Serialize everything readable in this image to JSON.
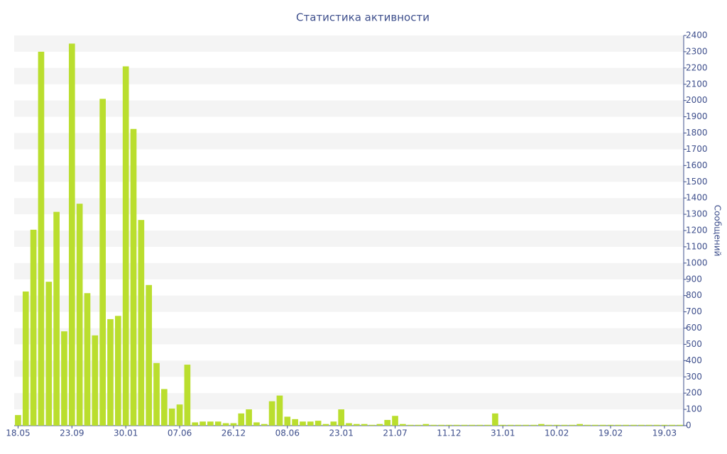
{
  "chart_data": {
    "type": "bar",
    "title": "Статистика активности",
    "y_label": "Сообщений",
    "categories": [
      "18.05",
      null,
      null,
      null,
      null,
      null,
      null,
      "23.09",
      null,
      null,
      null,
      null,
      null,
      null,
      "30.01",
      null,
      null,
      null,
      null,
      null,
      null,
      "07.06",
      null,
      null,
      null,
      null,
      null,
      null,
      "26.12",
      null,
      null,
      null,
      null,
      null,
      null,
      "08.06",
      null,
      null,
      null,
      null,
      null,
      null,
      "23.01",
      null,
      null,
      null,
      null,
      null,
      null,
      "21.07",
      null,
      null,
      null,
      null,
      null,
      null,
      "11.12",
      null,
      null,
      null,
      null,
      null,
      null,
      "31.01",
      null,
      null,
      null,
      null,
      null,
      null,
      "10.02",
      null,
      null,
      null,
      null,
      null,
      null,
      "19.02",
      null,
      null,
      null,
      null,
      null,
      null,
      "19.03",
      null,
      null
    ],
    "values": [
      65,
      825,
      1205,
      2300,
      885,
      1315,
      580,
      2350,
      1365,
      815,
      555,
      2010,
      655,
      675,
      2210,
      1825,
      1265,
      865,
      385,
      225,
      105,
      130,
      375,
      20,
      25,
      25,
      25,
      15,
      15,
      75,
      100,
      20,
      10,
      150,
      185,
      55,
      40,
      25,
      25,
      30,
      10,
      25,
      100,
      15,
      10,
      10,
      5,
      10,
      35,
      60,
      10,
      5,
      5,
      10,
      5,
      5,
      5,
      5,
      5,
      5,
      5,
      5,
      75,
      5,
      5,
      5,
      5,
      5,
      10,
      5,
      5,
      5,
      5,
      10,
      5,
      5,
      5,
      5,
      5,
      5,
      5,
      5,
      5,
      5,
      5,
      5,
      5
    ],
    "color": "#bade2e",
    "ylim": [
      0,
      2400
    ],
    "yticks": [
      0,
      100,
      200,
      300,
      400,
      500,
      600,
      700,
      800,
      900,
      1000,
      1100,
      1200,
      1300,
      1400,
      1500,
      1600,
      1700,
      1800,
      1900,
      2000,
      2100,
      2200,
      2300,
      2400
    ],
    "y_axis_side": "right",
    "grid": "stripes"
  }
}
